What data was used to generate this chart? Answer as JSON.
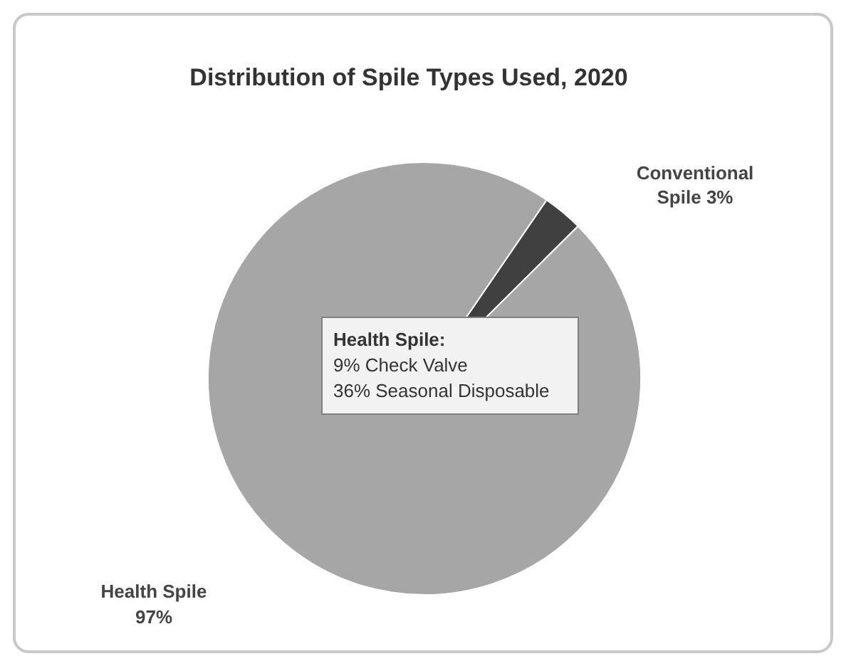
{
  "chart_data": {
    "type": "pie",
    "title": "Distribution of Spile Types Used, 2020",
    "categories": [
      "Health Spile",
      "Conventional Spile"
    ],
    "values": [
      97,
      3
    ],
    "colors": [
      "#a6a6a6",
      "#404040"
    ],
    "value_labels": [
      "97%",
      "3%"
    ],
    "annotations": [
      "Health Spile:\n9% Check Valve\n36% Seasonal Disposable"
    ]
  }
}
